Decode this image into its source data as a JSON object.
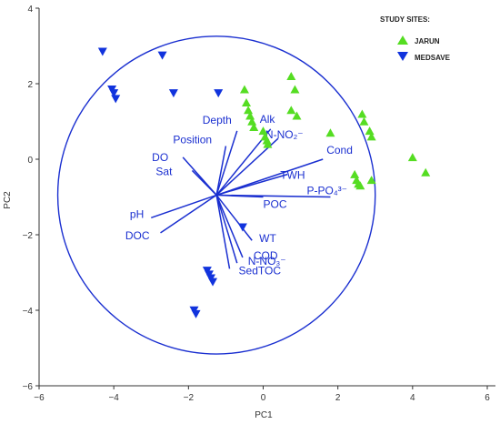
{
  "chart_data": {
    "type": "scatter",
    "xlabel": "PC1",
    "ylabel": "PC2",
    "xlim": [
      -6,
      6
    ],
    "ylim": [
      -6,
      4
    ],
    "x_ticks": [
      "−6",
      "−4",
      "−2",
      "0",
      "2",
      "4",
      "6"
    ],
    "y_ticks": [
      "−6",
      "−4",
      "−2",
      "0",
      "2",
      "4"
    ],
    "legend": {
      "title": "STUDY SITES:",
      "position": "top-right"
    },
    "series": [
      {
        "name": "JARUN",
        "marker": "triangle-up",
        "color": "#55dd22",
        "points": [
          [
            -0.5,
            1.85
          ],
          [
            -0.45,
            1.5
          ],
          [
            -0.4,
            1.3
          ],
          [
            -0.35,
            1.15
          ],
          [
            -0.3,
            1.0
          ],
          [
            -0.25,
            0.85
          ],
          [
            0.0,
            0.75
          ],
          [
            0.05,
            0.6
          ],
          [
            0.1,
            0.5
          ],
          [
            0.12,
            0.4
          ],
          [
            0.75,
            2.2
          ],
          [
            0.85,
            1.85
          ],
          [
            0.75,
            1.3
          ],
          [
            0.9,
            1.15
          ],
          [
            1.8,
            0.7
          ],
          [
            2.65,
            1.2
          ],
          [
            2.7,
            1.0
          ],
          [
            2.85,
            0.75
          ],
          [
            2.9,
            0.6
          ],
          [
            2.45,
            -0.4
          ],
          [
            2.5,
            -0.55
          ],
          [
            2.55,
            -0.65
          ],
          [
            2.6,
            -0.7
          ],
          [
            2.9,
            -0.55
          ],
          [
            4.0,
            0.05
          ],
          [
            4.35,
            -0.35
          ]
        ]
      },
      {
        "name": "MEDSAVE",
        "marker": "triangle-down",
        "color": "#1133dd",
        "points": [
          [
            -4.3,
            2.85
          ],
          [
            -2.7,
            2.75
          ],
          [
            -4.05,
            1.85
          ],
          [
            -4.0,
            1.75
          ],
          [
            -3.95,
            1.6
          ],
          [
            -2.4,
            1.75
          ],
          [
            -1.2,
            1.75
          ],
          [
            -0.55,
            -1.8
          ],
          [
            -1.5,
            -2.95
          ],
          [
            -1.45,
            -3.05
          ],
          [
            -1.4,
            -3.15
          ],
          [
            -1.35,
            -3.25
          ],
          [
            -1.85,
            -4.0
          ],
          [
            -1.8,
            -4.1
          ]
        ]
      }
    ],
    "circle": {
      "center": [
        -1.25,
        -0.95
      ],
      "radius": 4.25
    },
    "vectors": [
      {
        "label": "Depth",
        "to": [
          -0.7,
          0.75
        ]
      },
      {
        "label": "Position",
        "to": [
          -1.0,
          0.35
        ]
      },
      {
        "label": "DO",
        "to": [
          -2.15,
          0.05
        ]
      },
      {
        "label": "Sat",
        "to": [
          -1.9,
          -0.3
        ]
      },
      {
        "label": "pH",
        "to": [
          -3.0,
          -1.55
        ]
      },
      {
        "label": "DOC",
        "to": [
          -2.75,
          -1.95
        ]
      },
      {
        "label": "Alk",
        "to": [
          0.2,
          0.8
        ]
      },
      {
        "label": "N-NO₂⁻",
        "to": [
          0.4,
          0.55
        ]
      },
      {
        "label": "Cond",
        "to": [
          1.6,
          0.0
        ]
      },
      {
        "label": "TWH",
        "to": [
          0.65,
          -0.4
        ]
      },
      {
        "label": "P-PO₄³⁻",
        "to": [
          1.8,
          -1.0
        ]
      },
      {
        "label": "POC",
        "to": [
          0.0,
          -1.0
        ]
      },
      {
        "label": "WT",
        "to": [
          -0.3,
          -2.15
        ]
      },
      {
        "label": "COD",
        "to": [
          -0.55,
          -2.6
        ]
      },
      {
        "label": "N-NO₃⁻",
        "to": [
          -0.7,
          -2.75
        ]
      },
      {
        "label": "SedTOC",
        "to": [
          -0.9,
          -2.9
        ]
      }
    ]
  }
}
